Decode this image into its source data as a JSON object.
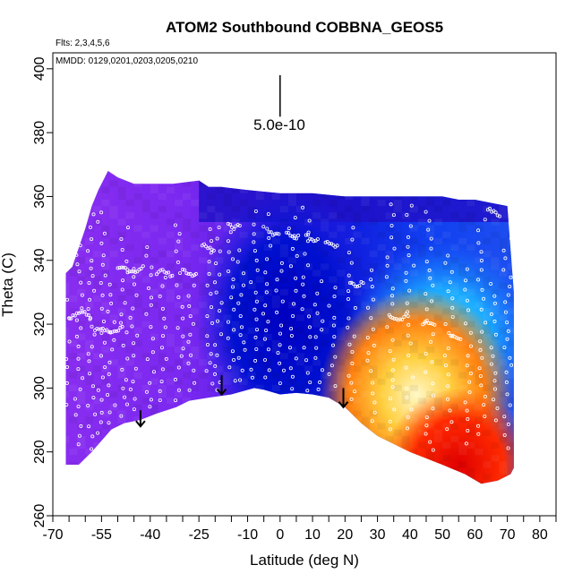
{
  "chart_data": {
    "type": "heatmap",
    "title": "ATOM2 Southbound COBBNA_GEOS5",
    "subtitle_flights": "Flts: 2,3,4,5,6",
    "subtitle_dates": "MMDD: 0129,0201,0203,0205,0210",
    "xlabel": "Latitude (deg N)",
    "ylabel": "Theta (C)",
    "xlim": [
      -70,
      85
    ],
    "ylim": [
      260,
      405
    ],
    "x_ticks": [
      -70,
      -55,
      -40,
      -25,
      -10,
      0,
      10,
      20,
      30,
      40,
      50,
      60,
      70,
      80
    ],
    "x_minor_ticks": [
      -65,
      -60,
      -50,
      -45,
      -35,
      -30,
      -20,
      -15,
      -5,
      5,
      15,
      25,
      35,
      45,
      55,
      65,
      75,
      85
    ],
    "y_ticks": [
      260,
      280,
      300,
      320,
      340,
      360,
      380,
      400
    ],
    "scale_annotation": {
      "label": "5.0e-10",
      "x": 0,
      "y_top": 398,
      "y_bottom": 385
    },
    "markers": [
      {
        "type": "arrow-down",
        "x": -43,
        "y_top": 293,
        "y_bottom": 288
      },
      {
        "type": "arrow-down",
        "x": -18,
        "y_top": 304,
        "y_bottom": 298
      },
      {
        "type": "arrow-down",
        "x": 19.5,
        "y_top": 300,
        "y_bottom": 294
      }
    ],
    "surface_boundary": {
      "lat": [
        -66,
        -66,
        -62,
        -58,
        -52,
        -48,
        -43,
        -38,
        -32,
        -28,
        -22,
        -15,
        -8,
        -5,
        0,
        5,
        10,
        15,
        20,
        25,
        30,
        40,
        50,
        57,
        62,
        67,
        71,
        72
      ],
      "theta": [
        276,
        276,
        276,
        280,
        287,
        289,
        290,
        292,
        294,
        296,
        297,
        298,
        300,
        299.5,
        298,
        298.5,
        298,
        297,
        294,
        289,
        285,
        280,
        276,
        273,
        270,
        271,
        273,
        275
      ]
    },
    "top_boundary": {
      "lat": [
        -66,
        -66,
        -64,
        -62,
        -60,
        -58,
        -56,
        -54,
        -53,
        -50,
        -45,
        -40,
        -33,
        -25,
        -22,
        -18,
        -10,
        0,
        10,
        20,
        30,
        40,
        50,
        55,
        60,
        65,
        70,
        72
      ],
      "theta": [
        310,
        336,
        338,
        344,
        350,
        357,
        362,
        366,
        368,
        366,
        364,
        364,
        364,
        365,
        363,
        363,
        362,
        361,
        361,
        360,
        360,
        360,
        360,
        359,
        359,
        358,
        357,
        330
      ]
    },
    "field_description": "ozone-like tracer, low (purple/blue) in south and aloft, high (yellow/red) near surface 20-72N"
  }
}
